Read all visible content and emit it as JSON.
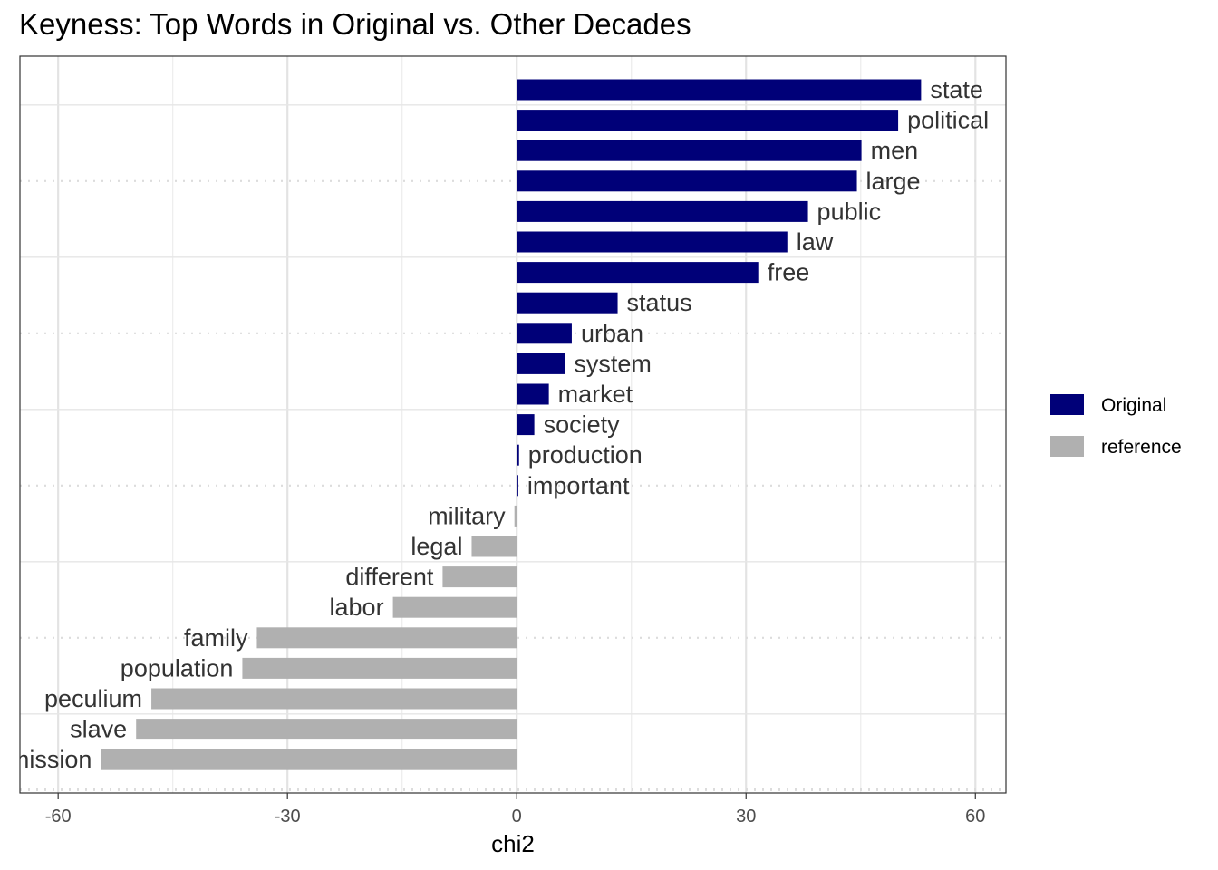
{
  "chart_data": {
    "type": "bar",
    "orientation": "horizontal",
    "title": "Keyness: Top Words in Original vs. Other Decades",
    "xlabel": "chi2",
    "ylabel": "",
    "xlim": [
      -65,
      64
    ],
    "xticks": [
      -60,
      -30,
      0,
      30,
      60
    ],
    "grid": true,
    "legend_position": "right",
    "colors": {
      "Original": "#000078",
      "reference": "#b0b0b0"
    },
    "series": [
      {
        "name": "Original",
        "color": "#000078"
      },
      {
        "name": "reference",
        "color": "#b0b0b0"
      }
    ],
    "categories": [
      "state",
      "political",
      "men",
      "large",
      "public",
      "law",
      "free",
      "status",
      "urban",
      "system",
      "market",
      "society",
      "production",
      "important",
      "military",
      "legal",
      "different",
      "labor",
      "family",
      "population",
      "peculium",
      "slave",
      "manumission"
    ],
    "values": [
      52.9,
      49.9,
      45.1,
      44.5,
      38.1,
      35.4,
      31.6,
      13.2,
      7.2,
      6.3,
      4.2,
      2.3,
      0.3,
      0.2,
      -0.3,
      -5.9,
      -9.7,
      -16.2,
      -34.0,
      -35.9,
      -47.8,
      -49.8,
      -54.4
    ],
    "groups": [
      "Original",
      "Original",
      "Original",
      "Original",
      "Original",
      "Original",
      "Original",
      "Original",
      "Original",
      "Original",
      "Original",
      "Original",
      "Original",
      "Original",
      "reference",
      "reference",
      "reference",
      "reference",
      "reference",
      "reference",
      "reference",
      "reference",
      "reference"
    ]
  }
}
